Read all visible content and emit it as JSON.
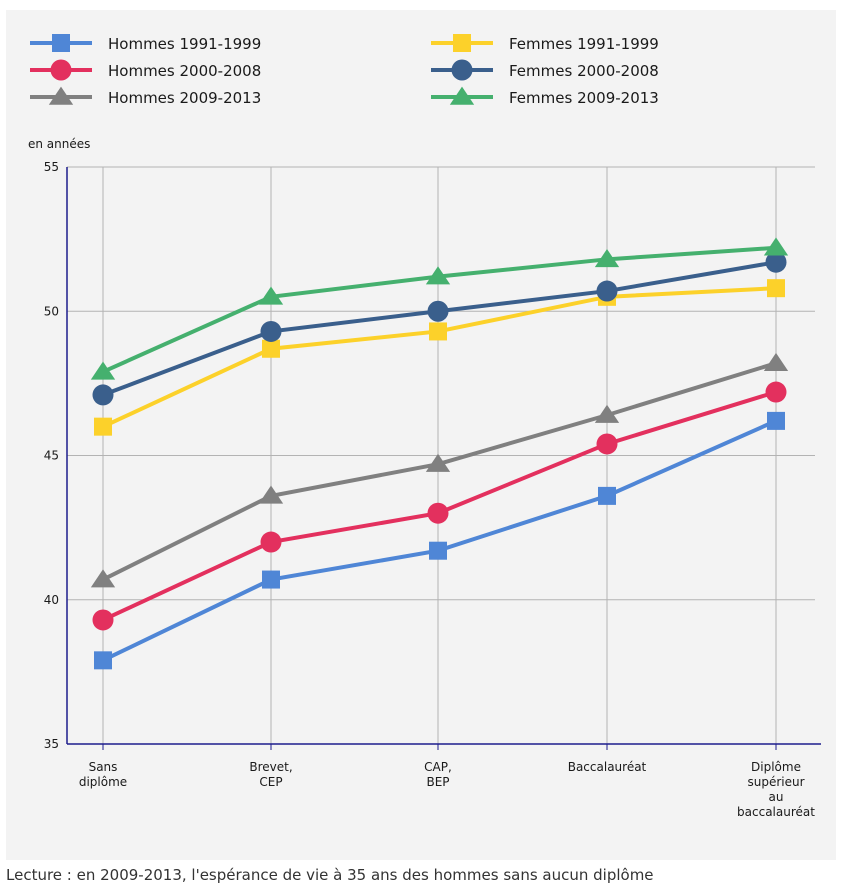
{
  "chart_data": {
    "type": "line",
    "ylabel": "en années",
    "ylim": [
      35,
      55
    ],
    "yticks": [
      35,
      40,
      45,
      50,
      55
    ],
    "grid": true,
    "legend": "top",
    "categories": [
      [
        "Sans",
        "diplôme"
      ],
      [
        "Brevet,",
        "CEP"
      ],
      [
        "CAP,",
        "BEP"
      ],
      [
        "Baccalauréat"
      ],
      [
        "Diplôme",
        "supérieur",
        "au",
        "baccalauréat"
      ]
    ],
    "series": [
      {
        "name": "Hommes 1991-1999",
        "color": "#4f86d6",
        "marker": "square",
        "values": [
          37.9,
          40.7,
          41.7,
          43.6,
          46.2
        ]
      },
      {
        "name": "Hommes 2000-2008",
        "color": "#e3305e",
        "marker": "circle",
        "values": [
          39.3,
          42.0,
          43.0,
          45.4,
          47.2
        ]
      },
      {
        "name": "Hommes 2009-2013",
        "color": "#808080",
        "marker": "triangle",
        "values": [
          40.7,
          43.6,
          44.7,
          46.4,
          48.2
        ]
      },
      {
        "name": "Femmes 1991-1999",
        "color": "#fcd12a",
        "marker": "square",
        "values": [
          46.0,
          48.7,
          49.3,
          50.5,
          50.8
        ]
      },
      {
        "name": "Femmes 2000-2008",
        "color": "#3a5f8c",
        "marker": "circle",
        "values": [
          47.1,
          49.3,
          50.0,
          50.7,
          51.7
        ]
      },
      {
        "name": "Femmes 2009-2013",
        "color": "#45b06e",
        "marker": "triangle",
        "values": [
          47.9,
          50.5,
          51.2,
          51.8,
          52.2
        ]
      }
    ]
  },
  "footnote": "Lecture : en 2009-2013, l'espérance de vie à 35 ans des hommes sans aucun diplôme"
}
